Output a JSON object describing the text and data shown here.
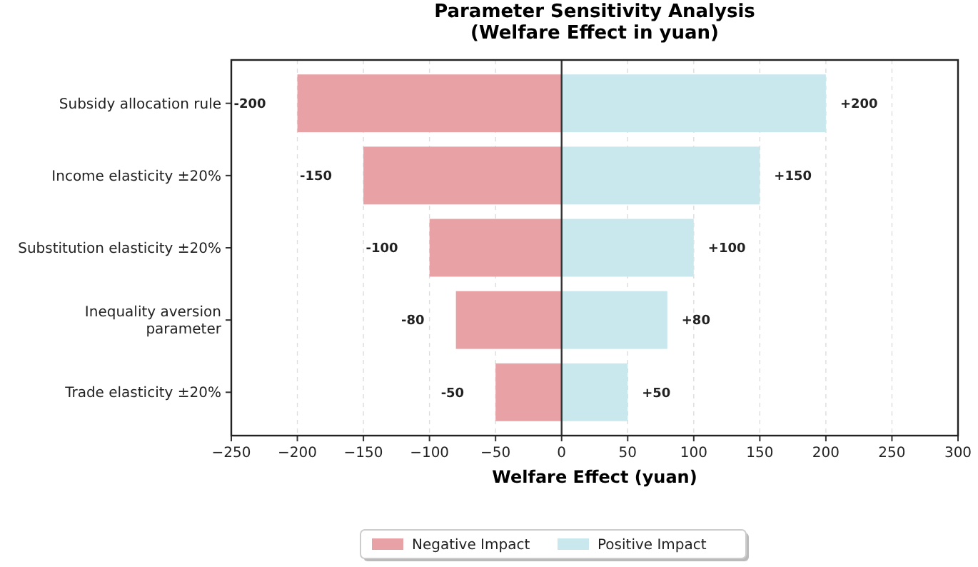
{
  "chart_data": {
    "type": "bar",
    "orientation": "horizontal",
    "title": "Parameter Sensitivity Analysis\n(Welfare Effect in yuan)",
    "xlabel": "Welfare Effect (yuan)",
    "categories": [
      "Subsidy allocation rule",
      "Income elasticity ±20%",
      "Substitution elasticity ±20%",
      "Inequality aversion\nparameter",
      "Trade elasticity ±20%"
    ],
    "series": [
      {
        "name": "Negative Impact",
        "color": "#e8a2a5",
        "values": [
          -200,
          -150,
          -100,
          -80,
          -50
        ],
        "value_labels": [
          "-200",
          "-150",
          "-100",
          "-80",
          "-50"
        ]
      },
      {
        "name": "Positive Impact",
        "color": "#c9e8ee",
        "values": [
          200,
          150,
          100,
          80,
          50
        ],
        "value_labels": [
          "+200",
          "+150",
          "+100",
          "+80",
          "+50"
        ]
      }
    ],
    "xlim": [
      -250,
      300
    ],
    "xticks": [
      {
        "value": -250,
        "label": "−250"
      },
      {
        "value": -200,
        "label": "−200"
      },
      {
        "value": -150,
        "label": "−150"
      },
      {
        "value": -100,
        "label": "−100"
      },
      {
        "value": -50,
        "label": "−50"
      },
      0,
      50,
      100,
      150,
      200,
      250,
      300
    ],
    "ref_lines": [
      {
        "axis": "x",
        "value": 0,
        "label": null,
        "color": "#333333"
      }
    ],
    "grid": "x",
    "legend": "bottom",
    "stacked": true
  }
}
